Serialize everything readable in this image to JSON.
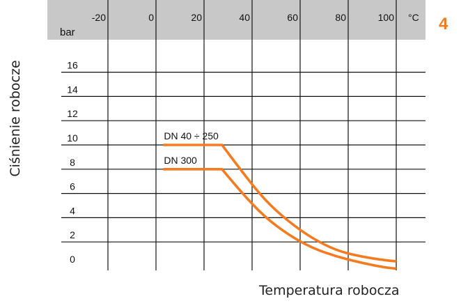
{
  "chart_data": {
    "type": "line",
    "xlabel": "Temperatura robocza",
    "ylabel": "Ciśnienie robocze",
    "x_unit": "°C",
    "y_unit": "bar",
    "badge": "4",
    "xlim": [
      -30,
      105
    ],
    "ylim": [
      0,
      17
    ],
    "x_ticks": [
      -20,
      0,
      20,
      40,
      60,
      80,
      100
    ],
    "x_tick_labels": [
      "-20",
      "0",
      "20",
      "40",
      "60",
      "80",
      "100"
    ],
    "y_ticks": [
      0,
      2,
      4,
      6,
      8,
      10,
      12,
      14,
      16
    ],
    "y_tick_labels": [
      "0",
      "2",
      "4",
      "6",
      "8",
      "10",
      "12",
      "14",
      "16"
    ],
    "grid": true,
    "series": [
      {
        "name": "DN 40 ÷ 250",
        "color": "#f47b20",
        "points": [
          [
            3,
            10
          ],
          [
            27.5,
            10
          ],
          [
            35,
            8
          ],
          [
            45,
            5.5
          ],
          [
            55,
            3.7
          ],
          [
            65,
            2.3
          ],
          [
            75,
            1.3
          ],
          [
            85,
            0.8
          ],
          [
            95,
            0.5
          ],
          [
            100,
            0.4
          ]
        ]
      },
      {
        "name": "DN 300",
        "color": "#f47b20",
        "points": [
          [
            3,
            8
          ],
          [
            27.5,
            8
          ],
          [
            35,
            6.2
          ],
          [
            45,
            4.1
          ],
          [
            55,
            2.6
          ],
          [
            65,
            1.5
          ],
          [
            75,
            0.8
          ],
          [
            85,
            0.3
          ],
          [
            95,
            -0.1
          ],
          [
            100,
            -0.2
          ]
        ]
      }
    ],
    "colors": {
      "header_band": "#c8c8c8",
      "curve": "#f47b20",
      "badge": "#f47b20",
      "grid": "#111111"
    }
  }
}
